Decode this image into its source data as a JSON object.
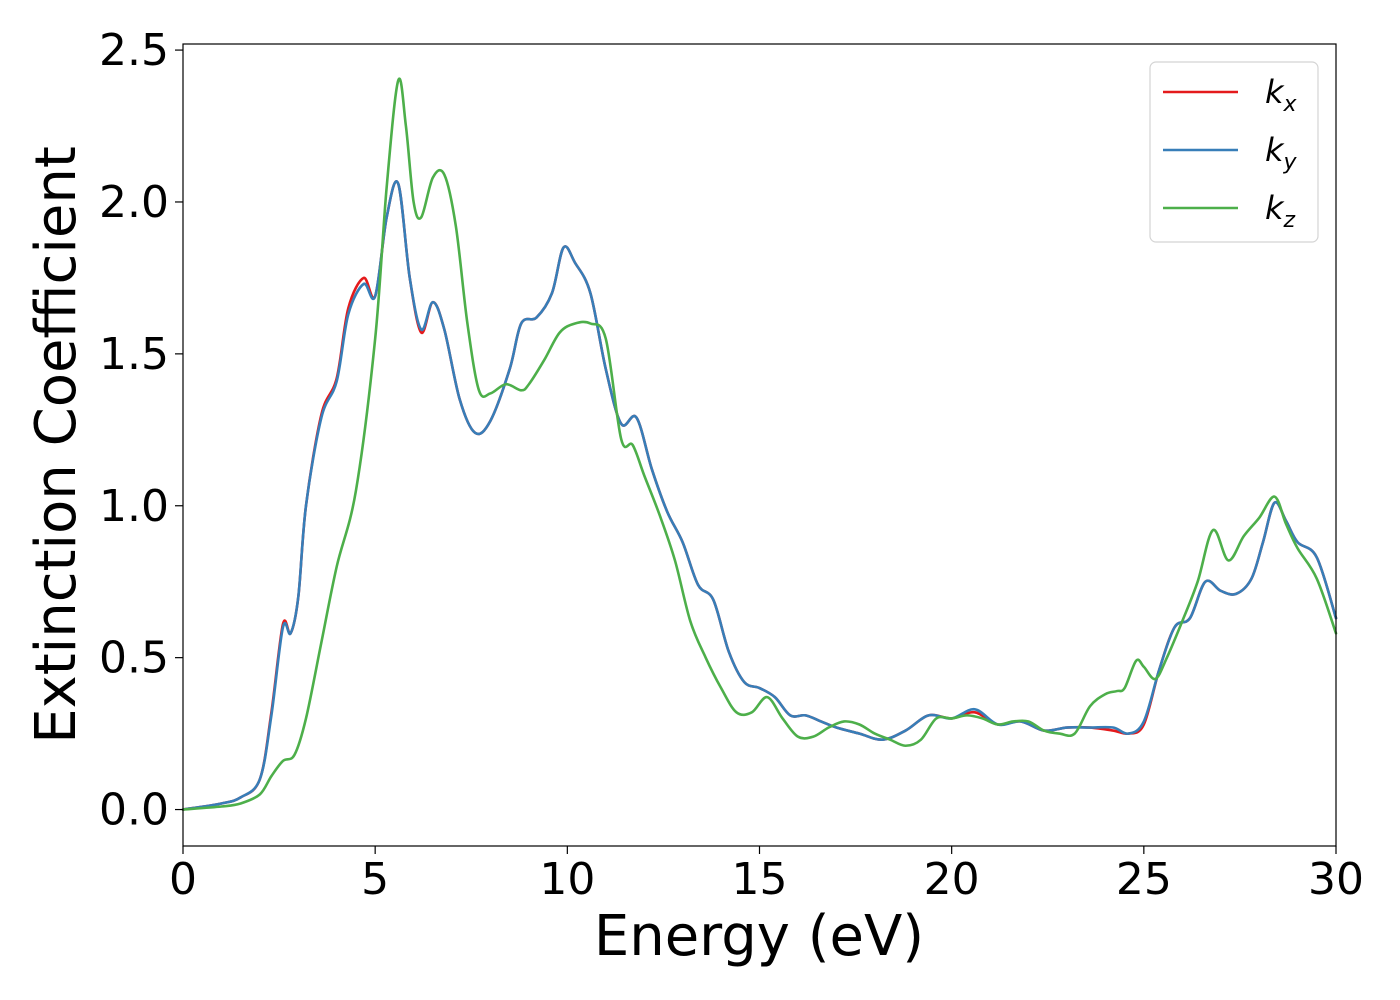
{
  "chart_data": {
    "type": "line",
    "xlabel": "Energy (eV)",
    "ylabel": "Extinction Coefficient",
    "xlim": [
      0,
      30
    ],
    "ylim": [
      -0.12,
      2.52
    ],
    "xticks": [
      "0",
      "5",
      "10",
      "15",
      "20",
      "25",
      "30"
    ],
    "yticks": [
      "0.0",
      "0.5",
      "1.0",
      "1.5",
      "2.0",
      "2.5"
    ],
    "grid": false,
    "legend_position": "top-right",
    "series": [
      {
        "name": "kx",
        "legend_main": "k",
        "legend_sub": "x",
        "color": "#e41a1c",
        "x": [
          0,
          1,
          1.5,
          2,
          2.3,
          2.6,
          2.8,
          3.0,
          3.2,
          3.6,
          4.0,
          4.3,
          4.7,
          5.0,
          5.3,
          5.6,
          5.9,
          6.2,
          6.5,
          6.8,
          7.2,
          7.6,
          8.0,
          8.5,
          8.8,
          9.2,
          9.6,
          9.9,
          10.2,
          10.6,
          11.0,
          11.4,
          11.8,
          12.2,
          12.6,
          13.0,
          13.4,
          13.8,
          14.2,
          14.6,
          15.0,
          15.4,
          15.8,
          16.2,
          16.6,
          17.0,
          17.6,
          18.2,
          18.8,
          19.4,
          20.0,
          20.6,
          21.2,
          21.8,
          22.4,
          23.0,
          23.6,
          24.2,
          24.6,
          25.0,
          25.4,
          25.8,
          26.2,
          26.6,
          27.0,
          27.4,
          27.8,
          28.1,
          28.4,
          28.7,
          29.0,
          29.5,
          30.0
        ],
        "values": [
          0,
          0.02,
          0.04,
          0.1,
          0.32,
          0.61,
          0.58,
          0.7,
          1.0,
          1.3,
          1.42,
          1.65,
          1.75,
          1.69,
          1.95,
          2.06,
          1.75,
          1.57,
          1.67,
          1.58,
          1.35,
          1.24,
          1.28,
          1.45,
          1.6,
          1.62,
          1.7,
          1.85,
          1.8,
          1.7,
          1.45,
          1.27,
          1.29,
          1.12,
          0.98,
          0.88,
          0.74,
          0.69,
          0.52,
          0.42,
          0.4,
          0.37,
          0.31,
          0.31,
          0.29,
          0.27,
          0.25,
          0.23,
          0.26,
          0.31,
          0.3,
          0.32,
          0.28,
          0.29,
          0.26,
          0.27,
          0.27,
          0.26,
          0.25,
          0.28,
          0.46,
          0.6,
          0.63,
          0.75,
          0.72,
          0.71,
          0.76,
          0.88,
          1.01,
          0.95,
          0.88,
          0.83,
          0.63
        ]
      },
      {
        "name": "ky",
        "legend_main": "k",
        "legend_sub": "y",
        "color": "#377eb8",
        "x": [
          0,
          1,
          1.5,
          2,
          2.3,
          2.6,
          2.8,
          3.0,
          3.2,
          3.6,
          4.0,
          4.3,
          4.7,
          5.0,
          5.3,
          5.6,
          5.9,
          6.2,
          6.5,
          6.8,
          7.2,
          7.6,
          8.0,
          8.5,
          8.8,
          9.2,
          9.6,
          9.9,
          10.2,
          10.6,
          11.0,
          11.4,
          11.8,
          12.2,
          12.6,
          13.0,
          13.4,
          13.8,
          14.2,
          14.6,
          15.0,
          15.4,
          15.8,
          16.2,
          16.6,
          17.0,
          17.6,
          18.2,
          18.8,
          19.4,
          20.0,
          20.6,
          21.2,
          21.8,
          22.4,
          23.0,
          23.6,
          24.2,
          24.6,
          25.0,
          25.4,
          25.8,
          26.2,
          26.6,
          27.0,
          27.4,
          27.8,
          28.1,
          28.4,
          28.7,
          29.0,
          29.5,
          30.0
        ],
        "values": [
          0,
          0.02,
          0.04,
          0.1,
          0.31,
          0.6,
          0.58,
          0.7,
          1.0,
          1.29,
          1.41,
          1.63,
          1.73,
          1.69,
          1.95,
          2.06,
          1.75,
          1.58,
          1.67,
          1.58,
          1.35,
          1.24,
          1.28,
          1.45,
          1.6,
          1.62,
          1.7,
          1.85,
          1.8,
          1.7,
          1.45,
          1.27,
          1.29,
          1.12,
          0.98,
          0.88,
          0.74,
          0.69,
          0.52,
          0.42,
          0.4,
          0.37,
          0.31,
          0.31,
          0.29,
          0.27,
          0.25,
          0.23,
          0.26,
          0.31,
          0.3,
          0.33,
          0.28,
          0.29,
          0.26,
          0.27,
          0.27,
          0.27,
          0.25,
          0.29,
          0.46,
          0.6,
          0.63,
          0.75,
          0.72,
          0.71,
          0.76,
          0.88,
          1.01,
          0.95,
          0.88,
          0.83,
          0.63
        ]
      },
      {
        "name": "kz",
        "legend_main": "k",
        "legend_sub": "z",
        "color": "#4daf4a",
        "x": [
          0,
          1,
          1.5,
          2,
          2.3,
          2.6,
          2.9,
          3.2,
          3.6,
          4.0,
          4.5,
          5.0,
          5.3,
          5.6,
          5.8,
          6.0,
          6.2,
          6.5,
          6.8,
          7.1,
          7.4,
          7.7,
          8.0,
          8.4,
          8.8,
          9.0,
          9.4,
          9.8,
          10.2,
          10.6,
          11.0,
          11.4,
          11.7,
          12.0,
          12.4,
          12.8,
          13.2,
          13.6,
          14.0,
          14.4,
          14.8,
          15.2,
          15.6,
          16.0,
          16.4,
          16.8,
          17.2,
          17.6,
          18.0,
          18.4,
          18.8,
          19.2,
          19.6,
          20.0,
          20.4,
          20.8,
          21.2,
          21.6,
          22.0,
          22.4,
          22.8,
          23.2,
          23.6,
          24.0,
          24.3,
          24.5,
          24.8,
          25.0,
          25.3,
          25.6,
          26.0,
          26.4,
          26.8,
          27.2,
          27.6,
          28.0,
          28.4,
          28.7,
          29.0,
          29.5,
          30.0
        ],
        "values": [
          0,
          0.01,
          0.02,
          0.05,
          0.11,
          0.16,
          0.18,
          0.3,
          0.55,
          0.8,
          1.05,
          1.55,
          2.05,
          2.4,
          2.25,
          2.0,
          1.95,
          2.08,
          2.09,
          1.92,
          1.6,
          1.38,
          1.37,
          1.4,
          1.38,
          1.4,
          1.48,
          1.57,
          1.6,
          1.6,
          1.55,
          1.22,
          1.2,
          1.1,
          0.97,
          0.82,
          0.62,
          0.5,
          0.4,
          0.32,
          0.32,
          0.37,
          0.3,
          0.24,
          0.24,
          0.27,
          0.29,
          0.28,
          0.25,
          0.23,
          0.21,
          0.23,
          0.3,
          0.3,
          0.31,
          0.3,
          0.28,
          0.29,
          0.29,
          0.26,
          0.25,
          0.25,
          0.34,
          0.38,
          0.39,
          0.4,
          0.49,
          0.47,
          0.43,
          0.5,
          0.62,
          0.75,
          0.92,
          0.82,
          0.9,
          0.96,
          1.03,
          0.94,
          0.86,
          0.76,
          0.58
        ]
      }
    ]
  }
}
